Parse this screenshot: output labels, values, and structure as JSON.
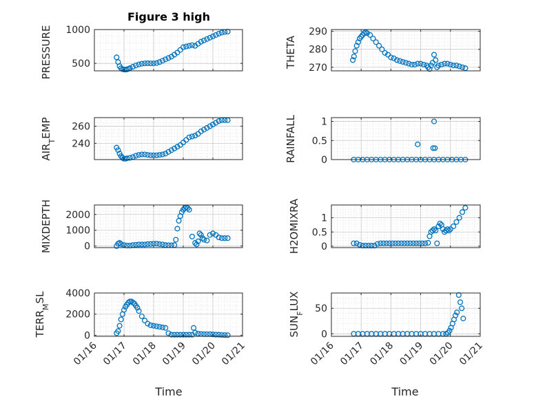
{
  "style": {
    "marker_color": "#0072BD",
    "axis_color": "#262626"
  },
  "chart_data": [
    {
      "type": "scatter",
      "title": "Figure 3 high",
      "ylabel": "PRESSURE",
      "xlabel": "",
      "xlim": [
        16,
        21
      ],
      "ylim": [
        390,
        1000
      ],
      "yticks": [
        500,
        1000
      ],
      "ytick_labels": [
        "500",
        "1000"
      ],
      "xticks": [
        16,
        17,
        18,
        19,
        20,
        21
      ],
      "xtick_labels": [],
      "grid": true,
      "minor_grid": true,
      "x": [
        16.75,
        16.8,
        16.85,
        16.9,
        16.95,
        17.0,
        17.05,
        17.1,
        17.15,
        17.2,
        17.3,
        17.4,
        17.5,
        17.6,
        17.7,
        17.8,
        17.9,
        18.0,
        18.1,
        18.2,
        18.3,
        18.4,
        18.5,
        18.6,
        18.7,
        18.8,
        18.9,
        19.0,
        19.1,
        19.2,
        19.3,
        19.4,
        19.5,
        19.6,
        19.7,
        19.8,
        19.9,
        20.0,
        20.1,
        20.2,
        20.3,
        20.4,
        20.5
      ],
      "y": [
        590,
        520,
        460,
        430,
        415,
        410,
        408,
        412,
        420,
        430,
        450,
        470,
        485,
        495,
        500,
        502,
        500,
        500,
        505,
        520,
        540,
        560,
        580,
        600,
        630,
        660,
        700,
        740,
        750,
        760,
        770,
        760,
        790,
        820,
        840,
        860,
        880,
        900,
        920,
        940,
        955,
        965,
        970
      ]
    },
    {
      "type": "scatter",
      "title": "",
      "ylabel": "THETA",
      "xlabel": "",
      "xlim": [
        16,
        21
      ],
      "ylim": [
        268,
        291
      ],
      "yticks": [
        270,
        280,
        290
      ],
      "ytick_labels": [
        "270",
        "280",
        "290"
      ],
      "xticks": [
        16,
        17,
        18,
        19,
        20,
        21
      ],
      "xtick_labels": [],
      "grid": true,
      "minor_grid": true,
      "x": [
        16.72,
        16.76,
        16.8,
        16.85,
        16.9,
        16.95,
        17.0,
        17.05,
        17.1,
        17.15,
        17.2,
        17.3,
        17.4,
        17.5,
        17.6,
        17.7,
        17.8,
        17.9,
        18.0,
        18.1,
        18.2,
        18.3,
        18.4,
        18.5,
        18.6,
        18.7,
        18.8,
        18.9,
        19.0,
        19.1,
        19.2,
        19.25,
        19.3,
        19.35,
        19.4,
        19.45,
        19.5,
        19.55,
        19.6,
        19.7,
        19.8,
        19.9,
        20.0,
        20.1,
        20.2,
        20.3,
        20.4,
        20.5
      ],
      "y": [
        274,
        276,
        279,
        282,
        284,
        286,
        287,
        288,
        289,
        289.5,
        289,
        288,
        286,
        284,
        282,
        280,
        278,
        277,
        275.5,
        275,
        274,
        273.5,
        273,
        272.5,
        272,
        271.5,
        271.5,
        272,
        272,
        271.5,
        271,
        270,
        269,
        271,
        272.5,
        277,
        274,
        270,
        271,
        271.5,
        272,
        272,
        271.5,
        271,
        271,
        270.5,
        270,
        269.5
      ]
    },
    {
      "type": "scatter",
      "title": "",
      "ylabel": "AIR_TEMP",
      "xlabel": "",
      "xlim": [
        16,
        21
      ],
      "ylim": [
        221,
        270
      ],
      "yticks": [
        240,
        260
      ],
      "ytick_labels": [
        "240",
        "260"
      ],
      "xticks": [
        16,
        17,
        18,
        19,
        20,
        21
      ],
      "xtick_labels": [],
      "grid": true,
      "minor_grid": true,
      "x": [
        16.75,
        16.8,
        16.85,
        16.9,
        16.95,
        17.0,
        17.05,
        17.1,
        17.2,
        17.3,
        17.4,
        17.5,
        17.6,
        17.7,
        17.8,
        17.9,
        18.0,
        18.1,
        18.2,
        18.3,
        18.4,
        18.5,
        18.6,
        18.7,
        18.8,
        18.9,
        19.0,
        19.1,
        19.2,
        19.3,
        19.4,
        19.5,
        19.6,
        19.7,
        19.8,
        19.9,
        20.0,
        20.1,
        20.2,
        20.3,
        20.4,
        20.5
      ],
      "y": [
        235,
        232,
        228,
        225,
        223,
        222,
        222,
        222.5,
        223,
        224,
        225.5,
        226.5,
        227,
        227,
        226.5,
        226,
        226,
        226,
        226.5,
        227,
        228,
        230,
        232,
        234,
        236,
        238,
        241,
        244,
        247,
        248,
        249,
        251,
        254,
        256,
        258,
        260,
        262,
        264,
        266,
        267,
        267,
        267
      ]
    },
    {
      "type": "scatter",
      "title": "",
      "ylabel": "RAINFALL",
      "xlabel": "",
      "xlim": [
        16,
        21
      ],
      "ylim": [
        0,
        1.1
      ],
      "yticks": [
        0,
        0.5,
        1
      ],
      "ytick_labels": [
        "0",
        "0.5",
        "1"
      ],
      "xticks": [
        16,
        17,
        18,
        19,
        20,
        21
      ],
      "xtick_labels": [],
      "grid": true,
      "minor_grid": true,
      "x": [
        16.75,
        16.9,
        17.05,
        17.2,
        17.35,
        17.5,
        17.65,
        17.8,
        17.95,
        18.1,
        18.25,
        18.4,
        18.55,
        18.7,
        18.85,
        19.0,
        19.15,
        19.3,
        19.45,
        19.6,
        19.75,
        19.9,
        20.05,
        20.2,
        20.35,
        20.5,
        18.9,
        19.42,
        19.45,
        19.48
      ],
      "y": [
        0,
        0,
        0,
        0,
        0,
        0,
        0,
        0,
        0,
        0,
        0,
        0,
        0,
        0,
        0,
        0,
        0,
        0,
        0,
        0,
        0,
        0,
        0,
        0,
        0,
        0,
        0.4,
        0.3,
        1.0,
        0.3
      ]
    },
    {
      "type": "scatter",
      "title": "",
      "ylabel": "MIXDEPTH",
      "xlabel": "",
      "xlim": [
        16,
        21
      ],
      "ylim": [
        -100,
        2600
      ],
      "yticks": [
        0,
        1000,
        2000
      ],
      "ytick_labels": [
        "0",
        "1000",
        "2000"
      ],
      "xticks": [
        16,
        17,
        18,
        19,
        20,
        21
      ],
      "xtick_labels": [],
      "grid": true,
      "minor_grid": true,
      "x": [
        16.75,
        16.8,
        16.85,
        16.9,
        17.0,
        17.1,
        17.2,
        17.3,
        17.4,
        17.5,
        17.6,
        17.7,
        17.8,
        17.9,
        18.0,
        18.1,
        18.2,
        18.3,
        18.4,
        18.5,
        18.6,
        18.7,
        18.75,
        18.8,
        18.85,
        18.9,
        18.95,
        19.0,
        19.05,
        19.1,
        19.15,
        19.2,
        19.3,
        19.4,
        19.45,
        19.5,
        19.55,
        19.6,
        19.65,
        19.7,
        19.8,
        19.9,
        20.0,
        20.1,
        20.2,
        20.3,
        20.4,
        20.5
      ],
      "y": [
        0,
        150,
        200,
        120,
        60,
        30,
        30,
        60,
        80,
        100,
        100,
        100,
        120,
        130,
        150,
        150,
        120,
        100,
        60,
        50,
        50,
        60,
        400,
        1100,
        1600,
        1900,
        2150,
        2300,
        2400,
        2450,
        2400,
        2300,
        600,
        200,
        100,
        300,
        800,
        700,
        500,
        400,
        350,
        700,
        800,
        700,
        550,
        500,
        500,
        500
      ]
    },
    {
      "type": "scatter",
      "title": "",
      "ylabel": "H2OMIXRA",
      "xlabel": "",
      "xlim": [
        16,
        21
      ],
      "ylim": [
        -0.05,
        1.45
      ],
      "yticks": [
        0,
        0.5,
        1
      ],
      "ytick_labels": [
        "0",
        "0.5",
        "1"
      ],
      "xticks": [
        16,
        17,
        18,
        19,
        20,
        21
      ],
      "xtick_labels": [],
      "grid": true,
      "minor_grid": true,
      "x": [
        16.75,
        16.85,
        16.95,
        17.05,
        17.15,
        17.25,
        17.35,
        17.45,
        17.55,
        17.65,
        17.75,
        17.85,
        17.95,
        18.05,
        18.15,
        18.25,
        18.35,
        18.45,
        18.55,
        18.65,
        18.75,
        18.85,
        18.95,
        19.05,
        19.15,
        19.25,
        19.3,
        19.35,
        19.4,
        19.45,
        19.5,
        19.55,
        19.6,
        19.65,
        19.7,
        19.75,
        19.8,
        19.85,
        19.9,
        19.95,
        20.0,
        20.1,
        20.2,
        20.3,
        20.4,
        20.5
      ],
      "y": [
        0.1,
        0.1,
        0.05,
        0.02,
        0.02,
        0.02,
        0.02,
        0.02,
        0.08,
        0.1,
        0.1,
        0.1,
        0.1,
        0.1,
        0.1,
        0.1,
        0.1,
        0.1,
        0.1,
        0.1,
        0.1,
        0.1,
        0.1,
        0.1,
        0.1,
        0.12,
        0.35,
        0.5,
        0.55,
        0.6,
        0.55,
        0.1,
        0.7,
        0.8,
        0.75,
        0.6,
        0.5,
        0.55,
        0.6,
        0.55,
        0.6,
        0.7,
        0.85,
        1.0,
        1.2,
        1.35
      ]
    },
    {
      "type": "scatter",
      "title": "",
      "ylabel": "TERR_MSL",
      "xlabel": "Time",
      "xlim": [
        16,
        21
      ],
      "ylim": [
        -100,
        4000
      ],
      "yticks": [
        0,
        2000,
        4000
      ],
      "ytick_labels": [
        "0",
        "2000",
        "4000"
      ],
      "xticks": [
        16,
        17,
        18,
        19,
        20,
        21
      ],
      "xtick_labels": [
        "01/16",
        "01/17",
        "01/18",
        "01/19",
        "01/20",
        "01/21"
      ],
      "grid": true,
      "minor_grid": true,
      "x": [
        16.75,
        16.8,
        16.85,
        16.9,
        16.95,
        17.0,
        17.05,
        17.1,
        17.15,
        17.2,
        17.25,
        17.3,
        17.35,
        17.4,
        17.45,
        17.5,
        17.6,
        17.7,
        17.8,
        17.9,
        18.0,
        18.1,
        18.2,
        18.3,
        18.4,
        18.5,
        18.6,
        18.7,
        18.8,
        18.9,
        19.0,
        19.1,
        19.2,
        19.3,
        19.35,
        19.4,
        19.5,
        19.6,
        19.7,
        19.8,
        19.9,
        20.0,
        20.1,
        20.2,
        20.3,
        20.4,
        20.5
      ],
      "y": [
        200,
        400,
        900,
        1500,
        2000,
        2400,
        2700,
        2900,
        3100,
        3200,
        3200,
        3100,
        3000,
        2800,
        2600,
        2300,
        1800,
        1400,
        1100,
        950,
        900,
        850,
        800,
        750,
        700,
        200,
        50,
        50,
        50,
        50,
        50,
        50,
        50,
        50,
        700,
        250,
        150,
        120,
        100,
        100,
        100,
        80,
        60,
        50,
        30,
        20,
        10
      ]
    },
    {
      "type": "scatter",
      "title": "",
      "ylabel": "SUN_FLUX",
      "xlabel": "Time",
      "xlim": [
        16,
        21
      ],
      "ylim": [
        -5,
        80
      ],
      "yticks": [
        0,
        50
      ],
      "ytick_labels": [
        "0",
        "50"
      ],
      "xticks": [
        16,
        17,
        18,
        19,
        20,
        21
      ],
      "xtick_labels": [
        "01/16",
        "01/17",
        "01/18",
        "01/19",
        "01/20",
        "01/21"
      ],
      "grid": true,
      "minor_grid": true,
      "x": [
        16.75,
        16.9,
        17.05,
        17.2,
        17.35,
        17.5,
        17.65,
        17.8,
        17.95,
        18.1,
        18.25,
        18.4,
        18.55,
        18.7,
        18.85,
        19.0,
        19.15,
        19.3,
        19.45,
        19.6,
        19.75,
        19.85,
        19.92,
        19.97,
        20.02,
        20.07,
        20.12,
        20.17,
        20.22,
        20.28,
        20.33,
        20.38,
        20.43
      ],
      "y": [
        0,
        0,
        0,
        0,
        0,
        0,
        0,
        0,
        0,
        0,
        0,
        0,
        0,
        0,
        0,
        0,
        0,
        0,
        0,
        0,
        0,
        0,
        2,
        6,
        12,
        20,
        28,
        36,
        42,
        76,
        62,
        50,
        30
      ]
    }
  ]
}
